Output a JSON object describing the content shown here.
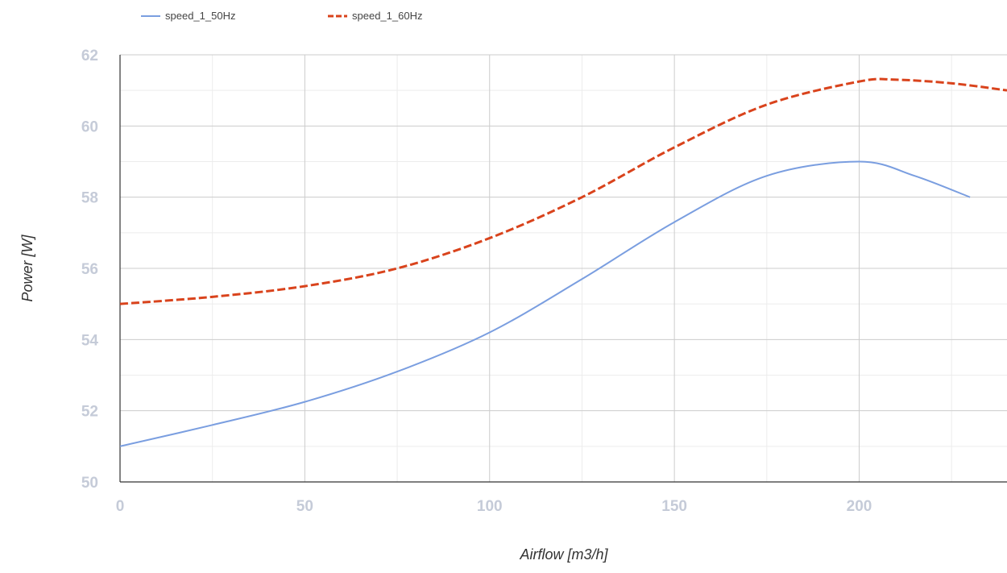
{
  "chart_data": {
    "type": "line",
    "xlabel": "Airflow [m3/h]",
    "ylabel": "Power [W]",
    "xlim": [
      0,
      240
    ],
    "ylim": [
      50,
      62
    ],
    "x_ticks": [
      0,
      50,
      100,
      150,
      200
    ],
    "y_ticks": [
      50,
      52,
      54,
      56,
      58,
      60,
      62
    ],
    "x_minor_step": 25,
    "y_minor_step": 1,
    "grid": true,
    "legend_position": "top-left",
    "series": [
      {
        "name": "speed_1_50Hz",
        "color": "#7a9ee0",
        "style": "solid",
        "x": [
          0,
          25,
          50,
          75,
          100,
          125,
          150,
          175,
          200,
          215,
          230
        ],
        "y": [
          51.0,
          51.6,
          52.25,
          53.1,
          54.2,
          55.7,
          57.3,
          58.6,
          59.0,
          58.6,
          58.0
        ]
      },
      {
        "name": "speed_1_60Hz",
        "color": "#d9431c",
        "style": "dashed",
        "x": [
          0,
          25,
          50,
          75,
          100,
          125,
          150,
          175,
          200,
          210,
          225,
          240
        ],
        "y": [
          55.0,
          55.2,
          55.5,
          56.0,
          56.85,
          58.0,
          59.4,
          60.6,
          61.25,
          61.3,
          61.2,
          61.0
        ]
      }
    ]
  }
}
